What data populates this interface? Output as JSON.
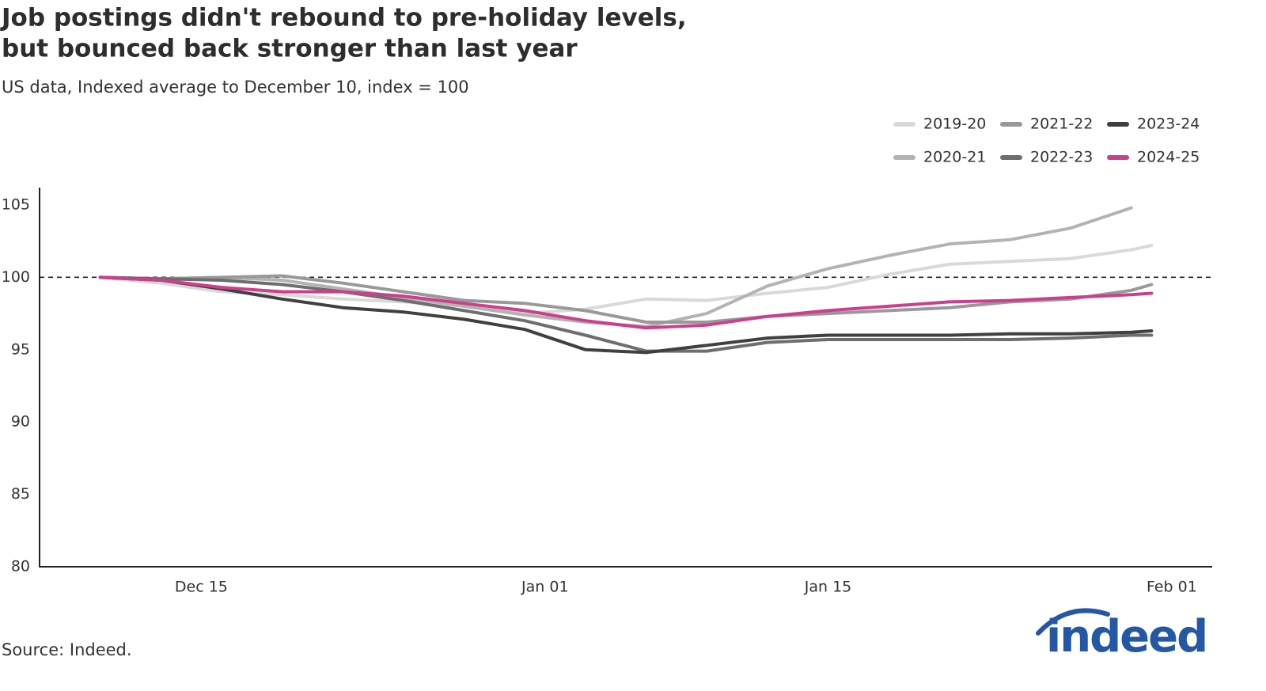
{
  "chart_data": {
    "type": "line",
    "title": [
      "Job postings didn't rebound to pre-holiday levels,",
      "but bounced back stronger than last year"
    ],
    "subtitle": "US data, Indexed average to December 10, index = 100",
    "source": "Source: Indeed.",
    "logo": "indeed",
    "x": [
      "Dec 10",
      "Dec 13",
      "Dec 16",
      "Dec 19",
      "Dec 22",
      "Dec 25",
      "Dec 28",
      "Dec 31",
      "Jan 03",
      "Jan 06",
      "Jan 09",
      "Jan 12",
      "Jan 15",
      "Jan 18",
      "Jan 21",
      "Jan 24",
      "Jan 27",
      "Jan 30",
      "Jan 31"
    ],
    "xlim": [
      "Dec 07",
      "Feb 03"
    ],
    "xticks": [
      "Dec 15",
      "Jan 01",
      "Jan 15",
      "Feb 01"
    ],
    "ylim": [
      80,
      106.2
    ],
    "yticks": [
      80,
      85,
      90,
      95,
      100,
      105
    ],
    "reference_line": 100,
    "legend_position": "top-right",
    "series": [
      {
        "name": "2019-20",
        "color": "#d9d9d9",
        "values": [
          100,
          99.6,
          99.0,
          98.8,
          98.5,
          98.3,
          98.0,
          97.5,
          97.8,
          98.5,
          98.4,
          98.9,
          99.3,
          100.2,
          100.9,
          101.1,
          101.3,
          101.9,
          102.2
        ]
      },
      {
        "name": "2020-21",
        "color": "#b3b3b3",
        "values": [
          100,
          99.9,
          100.0,
          99.8,
          99.2,
          98.6,
          98.0,
          97.4,
          96.9,
          96.6,
          97.5,
          99.4,
          100.6,
          101.5,
          102.3,
          102.6,
          103.4,
          104.8,
          null
        ]
      },
      {
        "name": "2021-22",
        "color": "#999999",
        "values": [
          100,
          99.9,
          100.0,
          100.1,
          99.6,
          99.0,
          98.4,
          98.2,
          97.7,
          96.9,
          96.9,
          97.3,
          97.5,
          97.7,
          97.9,
          98.3,
          98.5,
          99.1,
          99.5
        ]
      },
      {
        "name": "2022-23",
        "color": "#6e6e6e",
        "values": [
          100,
          99.9,
          99.8,
          99.5,
          99.0,
          98.4,
          97.7,
          97.0,
          96.0,
          94.9,
          94.9,
          95.5,
          95.7,
          95.7,
          95.7,
          95.7,
          95.8,
          96.0,
          96.0
        ]
      },
      {
        "name": "2023-24",
        "color": "#404040",
        "values": [
          100,
          99.8,
          99.2,
          98.5,
          97.9,
          97.6,
          97.1,
          96.4,
          95.0,
          94.8,
          95.3,
          95.8,
          96.0,
          96.0,
          96.0,
          96.1,
          96.1,
          96.2,
          96.3
        ]
      },
      {
        "name": "2024-25",
        "color": "#cc3f8e",
        "values": [
          100,
          99.8,
          99.3,
          99.0,
          99.0,
          98.7,
          98.2,
          97.7,
          97.0,
          96.5,
          96.7,
          97.3,
          97.7,
          98.0,
          98.3,
          98.4,
          98.6,
          98.8,
          98.9
        ]
      }
    ]
  }
}
